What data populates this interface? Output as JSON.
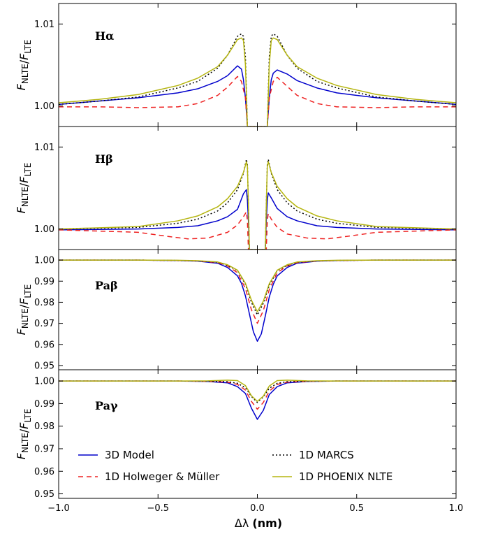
{
  "chart_data": [
    {
      "type": "line",
      "panel_label": "Hα",
      "ylabel": "FNLTE/FLTE",
      "xlim": [
        -1.0,
        1.0
      ],
      "ylim": [
        0.9975,
        1.0125
      ],
      "yticks": [
        1.0,
        1.01
      ],
      "ytick_labels": [
        "1.00",
        "1.01"
      ],
      "series": [
        {
          "name": "3D Model",
          "color": "#0000cc",
          "dash": "solid",
          "x": [
            -1.0,
            -0.8,
            -0.6,
            -0.4,
            -0.3,
            -0.2,
            -0.15,
            -0.1,
            -0.08,
            -0.07,
            -0.06,
            -0.05,
            0.05,
            0.06,
            0.07,
            0.08,
            0.1,
            0.15,
            0.2,
            0.3,
            0.4,
            0.6,
            0.8,
            1.0
          ],
          "y": [
            1.0002,
            1.0006,
            1.001,
            1.0016,
            1.0021,
            1.003,
            1.0037,
            1.0049,
            1.0045,
            1.0032,
            1.001,
            0.9975,
            0.9975,
            1.001,
            1.0032,
            1.004,
            1.0044,
            1.0039,
            1.0031,
            1.0022,
            1.0016,
            1.001,
            1.0006,
            1.0002
          ]
        },
        {
          "name": "1D Holweger & Müller",
          "color": "#ee2222",
          "dash": "7,5",
          "x": [
            -1.0,
            -0.8,
            -0.6,
            -0.4,
            -0.3,
            -0.2,
            -0.15,
            -0.1,
            -0.08,
            -0.06,
            -0.05,
            0.05,
            0.06,
            0.08,
            0.1,
            0.15,
            0.2,
            0.3,
            0.4,
            0.6,
            0.8,
            1.0
          ],
          "y": [
            0.9999,
            0.9999,
            0.9998,
            0.9999,
            1.0003,
            1.0013,
            1.0023,
            1.0036,
            1.003,
            1.001,
            0.9975,
            0.9975,
            1.001,
            1.003,
            1.0035,
            1.0024,
            1.0013,
            1.0003,
            0.9999,
            0.9998,
            0.9999,
            0.9999
          ]
        },
        {
          "name": "1D MARCS",
          "color": "#000000",
          "dash": "2,3",
          "x": [
            -1.0,
            -0.8,
            -0.6,
            -0.4,
            -0.3,
            -0.2,
            -0.15,
            -0.1,
            -0.08,
            -0.07,
            -0.06,
            -0.05,
            0.05,
            0.06,
            0.07,
            0.08,
            0.1,
            0.15,
            0.2,
            0.3,
            0.4,
            0.6,
            0.8,
            1.0
          ],
          "y": [
            1.0002,
            1.0006,
            1.0011,
            1.0022,
            1.003,
            1.0046,
            1.0062,
            1.0085,
            1.0088,
            1.0085,
            1.006,
            0.9975,
            0.9975,
            1.006,
            1.0085,
            1.0088,
            1.0085,
            1.0062,
            1.0046,
            1.003,
            1.0022,
            1.0011,
            1.0006,
            1.0002
          ]
        },
        {
          "name": "1D PHOENIX NLTE",
          "color": "#b5b510",
          "dash": "solid",
          "x": [
            -1.0,
            -0.8,
            -0.6,
            -0.4,
            -0.3,
            -0.2,
            -0.15,
            -0.1,
            -0.08,
            -0.07,
            -0.06,
            -0.05,
            0.05,
            0.06,
            0.07,
            0.08,
            0.1,
            0.15,
            0.2,
            0.3,
            0.4,
            0.6,
            0.8,
            1.0
          ],
          "y": [
            1.0004,
            1.0008,
            1.0014,
            1.0025,
            1.0034,
            1.0048,
            1.0062,
            1.0081,
            1.0083,
            1.008,
            1.005,
            0.9975,
            0.9975,
            1.005,
            1.008,
            1.0083,
            1.0081,
            1.0062,
            1.0048,
            1.0034,
            1.0025,
            1.0014,
            1.0008,
            1.0004
          ]
        }
      ]
    },
    {
      "type": "line",
      "panel_label": "Hβ",
      "ylabel": "FNLTE/FLTE",
      "xlim": [
        -1.0,
        1.0
      ],
      "ylim": [
        0.9975,
        1.0125
      ],
      "yticks": [
        1.0,
        1.01
      ],
      "ytick_labels": [
        "1.00",
        "1.01"
      ],
      "series": [
        {
          "name": "3D Model",
          "color": "#0000cc",
          "dash": "solid",
          "x": [
            -1.0,
            -0.6,
            -0.4,
            -0.3,
            -0.2,
            -0.15,
            -0.1,
            -0.07,
            -0.055,
            -0.05,
            -0.045,
            -0.04,
            0.04,
            0.045,
            0.05,
            0.055,
            0.07,
            0.1,
            0.15,
            0.2,
            0.3,
            0.4,
            0.6,
            1.0
          ],
          "y": [
            0.9999,
            1.0,
            1.0002,
            1.0004,
            1.001,
            1.0015,
            1.0024,
            1.0043,
            1.0048,
            1.0035,
            1.001,
            0.9975,
            0.9975,
            1.001,
            1.0035,
            1.0044,
            1.0038,
            1.0025,
            1.0015,
            1.001,
            1.0004,
            1.0002,
            1.0,
            0.9999
          ]
        },
        {
          "name": "1D Holweger & Müller",
          "color": "#ee2222",
          "dash": "7,5",
          "x": [
            -1.0,
            -0.6,
            -0.45,
            -0.35,
            -0.25,
            -0.15,
            -0.1,
            -0.07,
            -0.055,
            -0.05,
            -0.045,
            0.045,
            0.05,
            0.055,
            0.07,
            0.1,
            0.15,
            0.25,
            0.35,
            0.45,
            0.6,
            1.0
          ],
          "y": [
            0.9999,
            0.9996,
            0.9991,
            0.9988,
            0.9989,
            0.9996,
            1.0005,
            1.0015,
            1.0021,
            1.001,
            0.9975,
            0.9975,
            1.001,
            1.0019,
            1.0012,
            1.0002,
            0.9994,
            0.9989,
            0.9988,
            0.9991,
            0.9996,
            0.9999
          ]
        },
        {
          "name": "1D MARCS",
          "color": "#000000",
          "dash": "2,3",
          "x": [
            -1.0,
            -0.6,
            -0.4,
            -0.3,
            -0.2,
            -0.15,
            -0.1,
            -0.07,
            -0.055,
            -0.05,
            -0.045,
            -0.04,
            0.04,
            0.045,
            0.05,
            0.055,
            0.07,
            0.1,
            0.15,
            0.2,
            0.3,
            0.4,
            0.6,
            1.0
          ],
          "y": [
            1.0,
            1.0002,
            1.0007,
            1.0012,
            1.0022,
            1.0032,
            1.0048,
            1.0068,
            1.0085,
            1.0078,
            1.003,
            0.9975,
            0.9975,
            1.003,
            1.0078,
            1.0085,
            1.0068,
            1.0048,
            1.0032,
            1.0022,
            1.0012,
            1.0007,
            1.0002,
            1.0
          ]
        },
        {
          "name": "1D PHOENIX NLTE",
          "color": "#b5b510",
          "dash": "solid",
          "x": [
            -1.0,
            -0.6,
            -0.4,
            -0.3,
            -0.2,
            -0.15,
            -0.1,
            -0.07,
            -0.055,
            -0.05,
            -0.045,
            -0.04,
            0.04,
            0.045,
            0.05,
            0.055,
            0.07,
            0.1,
            0.15,
            0.2,
            0.3,
            0.4,
            0.6,
            1.0
          ],
          "y": [
            1.0,
            1.0003,
            1.001,
            1.0016,
            1.0027,
            1.0037,
            1.0052,
            1.0069,
            1.0082,
            1.0076,
            1.003,
            0.9975,
            0.9975,
            1.003,
            1.0076,
            1.0082,
            1.0069,
            1.0052,
            1.0037,
            1.0027,
            1.0016,
            1.001,
            1.0003,
            1.0
          ]
        }
      ]
    },
    {
      "type": "line",
      "panel_label": "Paβ",
      "ylabel": "FNLTE/FLTE",
      "xlim": [
        -1.0,
        1.0
      ],
      "ylim": [
        0.948,
        1.005
      ],
      "yticks": [
        0.95,
        0.96,
        0.97,
        0.98,
        0.99,
        1.0
      ],
      "ytick_labels": [
        "0.95",
        "0.96",
        "0.97",
        "0.98",
        "0.99",
        "1.00"
      ],
      "series": [
        {
          "name": "3D Model",
          "color": "#0000cc",
          "dash": "solid",
          "x": [
            -1.0,
            -0.6,
            -0.4,
            -0.3,
            -0.2,
            -0.15,
            -0.1,
            -0.08,
            -0.06,
            -0.04,
            -0.02,
            0.0,
            0.02,
            0.04,
            0.06,
            0.08,
            0.1,
            0.15,
            0.2,
            0.3,
            0.4,
            0.6,
            1.0
          ],
          "y": [
            1.0,
            1.0,
            0.9998,
            0.9995,
            0.9985,
            0.9965,
            0.9925,
            0.989,
            0.983,
            0.9745,
            0.966,
            0.9615,
            0.965,
            0.9735,
            0.9825,
            0.9885,
            0.9925,
            0.9965,
            0.9985,
            0.9995,
            0.9998,
            1.0,
            1.0
          ]
        },
        {
          "name": "1D Holweger & Müller",
          "color": "#ee2222",
          "dash": "7,5",
          "x": [
            -1.0,
            -0.6,
            -0.4,
            -0.3,
            -0.2,
            -0.15,
            -0.1,
            -0.06,
            -0.03,
            0.0,
            0.03,
            0.06,
            0.1,
            0.15,
            0.2,
            0.3,
            0.4,
            0.6,
            1.0
          ],
          "y": [
            1.0,
            1.0,
            0.9998,
            0.9996,
            0.9988,
            0.9972,
            0.994,
            0.9865,
            0.9765,
            0.97,
            0.976,
            0.986,
            0.994,
            0.9972,
            0.9988,
            0.9996,
            0.9998,
            1.0,
            1.0
          ]
        },
        {
          "name": "1D MARCS",
          "color": "#000000",
          "dash": "2,3",
          "x": [
            -1.0,
            -0.6,
            -0.4,
            -0.3,
            -0.2,
            -0.15,
            -0.1,
            -0.06,
            -0.03,
            0.0,
            0.03,
            0.06,
            0.1,
            0.15,
            0.2,
            0.3,
            0.4,
            0.6,
            1.0
          ],
          "y": [
            1.0,
            1.0,
            0.9998,
            0.9996,
            0.999,
            0.9975,
            0.995,
            0.9885,
            0.98,
            0.974,
            0.9795,
            0.988,
            0.995,
            0.9975,
            0.999,
            0.9996,
            0.9998,
            1.0,
            1.0
          ]
        },
        {
          "name": "1D PHOENIX NLTE",
          "color": "#b5b510",
          "dash": "solid",
          "x": [
            -1.0,
            -0.6,
            -0.4,
            -0.3,
            -0.2,
            -0.15,
            -0.1,
            -0.06,
            -0.03,
            0.0,
            0.03,
            0.06,
            0.1,
            0.15,
            0.2,
            0.3,
            0.4,
            0.6,
            1.0
          ],
          "y": [
            1.0,
            1.0,
            0.9999,
            0.9997,
            0.9991,
            0.9978,
            0.9952,
            0.989,
            0.981,
            0.9755,
            0.9805,
            0.9888,
            0.9952,
            0.9978,
            0.9991,
            0.9997,
            0.9999,
            1.0,
            1.0
          ]
        }
      ]
    },
    {
      "type": "line",
      "panel_label": "Paγ",
      "ylabel": "FNLTE/FLTE",
      "xlim": [
        -1.0,
        1.0
      ],
      "ylim": [
        0.948,
        1.005
      ],
      "yticks": [
        0.95,
        0.96,
        0.97,
        0.98,
        0.99,
        1.0
      ],
      "ytick_labels": [
        "0.95",
        "0.96",
        "0.97",
        "0.98",
        "0.99",
        "1.00"
      ],
      "xticks": [
        -1.0,
        -0.5,
        0.0,
        0.5,
        1.0
      ],
      "xtick_labels": [
        "−1.0",
        "−0.5",
        "0.0",
        "0.5",
        "1.0"
      ],
      "xlabel": "Δλ (nm)",
      "legend": {
        "placement": "lower",
        "entries": [
          "3D Model",
          "1D Holweger & Müller",
          "1D MARCS",
          "1D PHOENIX NLTE"
        ]
      },
      "series": [
        {
          "name": "3D Model",
          "color": "#0000cc",
          "dash": "solid",
          "x": [
            -1.0,
            -0.4,
            -0.25,
            -0.15,
            -0.1,
            -0.06,
            -0.03,
            0.0,
            0.03,
            0.06,
            0.1,
            0.15,
            0.25,
            0.4,
            1.0
          ],
          "y": [
            1.0,
            1.0,
            0.9998,
            0.9992,
            0.9975,
            0.9945,
            0.988,
            0.983,
            0.987,
            0.994,
            0.9975,
            0.9992,
            0.9998,
            1.0,
            1.0
          ]
        },
        {
          "name": "1D Holweger & Müller",
          "color": "#ee2222",
          "dash": "7,5",
          "x": [
            -1.0,
            -0.4,
            -0.25,
            -0.15,
            -0.1,
            -0.06,
            -0.03,
            0.0,
            0.03,
            0.06,
            0.1,
            0.15,
            0.25,
            0.4,
            1.0
          ],
          "y": [
            1.0,
            1.0,
            0.9999,
            0.9995,
            0.9985,
            0.996,
            0.991,
            0.9875,
            0.9905,
            0.9955,
            0.9985,
            0.9995,
            0.9999,
            1.0,
            1.0
          ]
        },
        {
          "name": "1D MARCS",
          "color": "#000000",
          "dash": "2,3",
          "x": [
            -1.0,
            -0.4,
            -0.25,
            -0.15,
            -0.1,
            -0.06,
            -0.03,
            0.0,
            0.03,
            0.06,
            0.1,
            0.15,
            0.25,
            0.4,
            1.0
          ],
          "y": [
            1.0,
            1.0,
            0.9999,
            0.9997,
            0.999,
            0.997,
            0.9932,
            0.9905,
            0.993,
            0.9968,
            0.999,
            0.9997,
            0.9999,
            1.0,
            1.0
          ]
        },
        {
          "name": "1D PHOENIX NLTE",
          "color": "#b5b510",
          "dash": "solid",
          "x": [
            -1.0,
            -0.4,
            -0.25,
            -0.15,
            -0.1,
            -0.06,
            -0.03,
            0.0,
            0.03,
            0.06,
            0.1,
            0.15,
            0.25,
            0.4,
            1.0
          ],
          "y": [
            1.0,
            1.0,
            1.0001,
            1.0004,
            1.0002,
            0.998,
            0.9935,
            0.991,
            0.9933,
            0.9978,
            1.0002,
            1.0004,
            1.0001,
            1.0,
            1.0
          ]
        }
      ]
    }
  ]
}
